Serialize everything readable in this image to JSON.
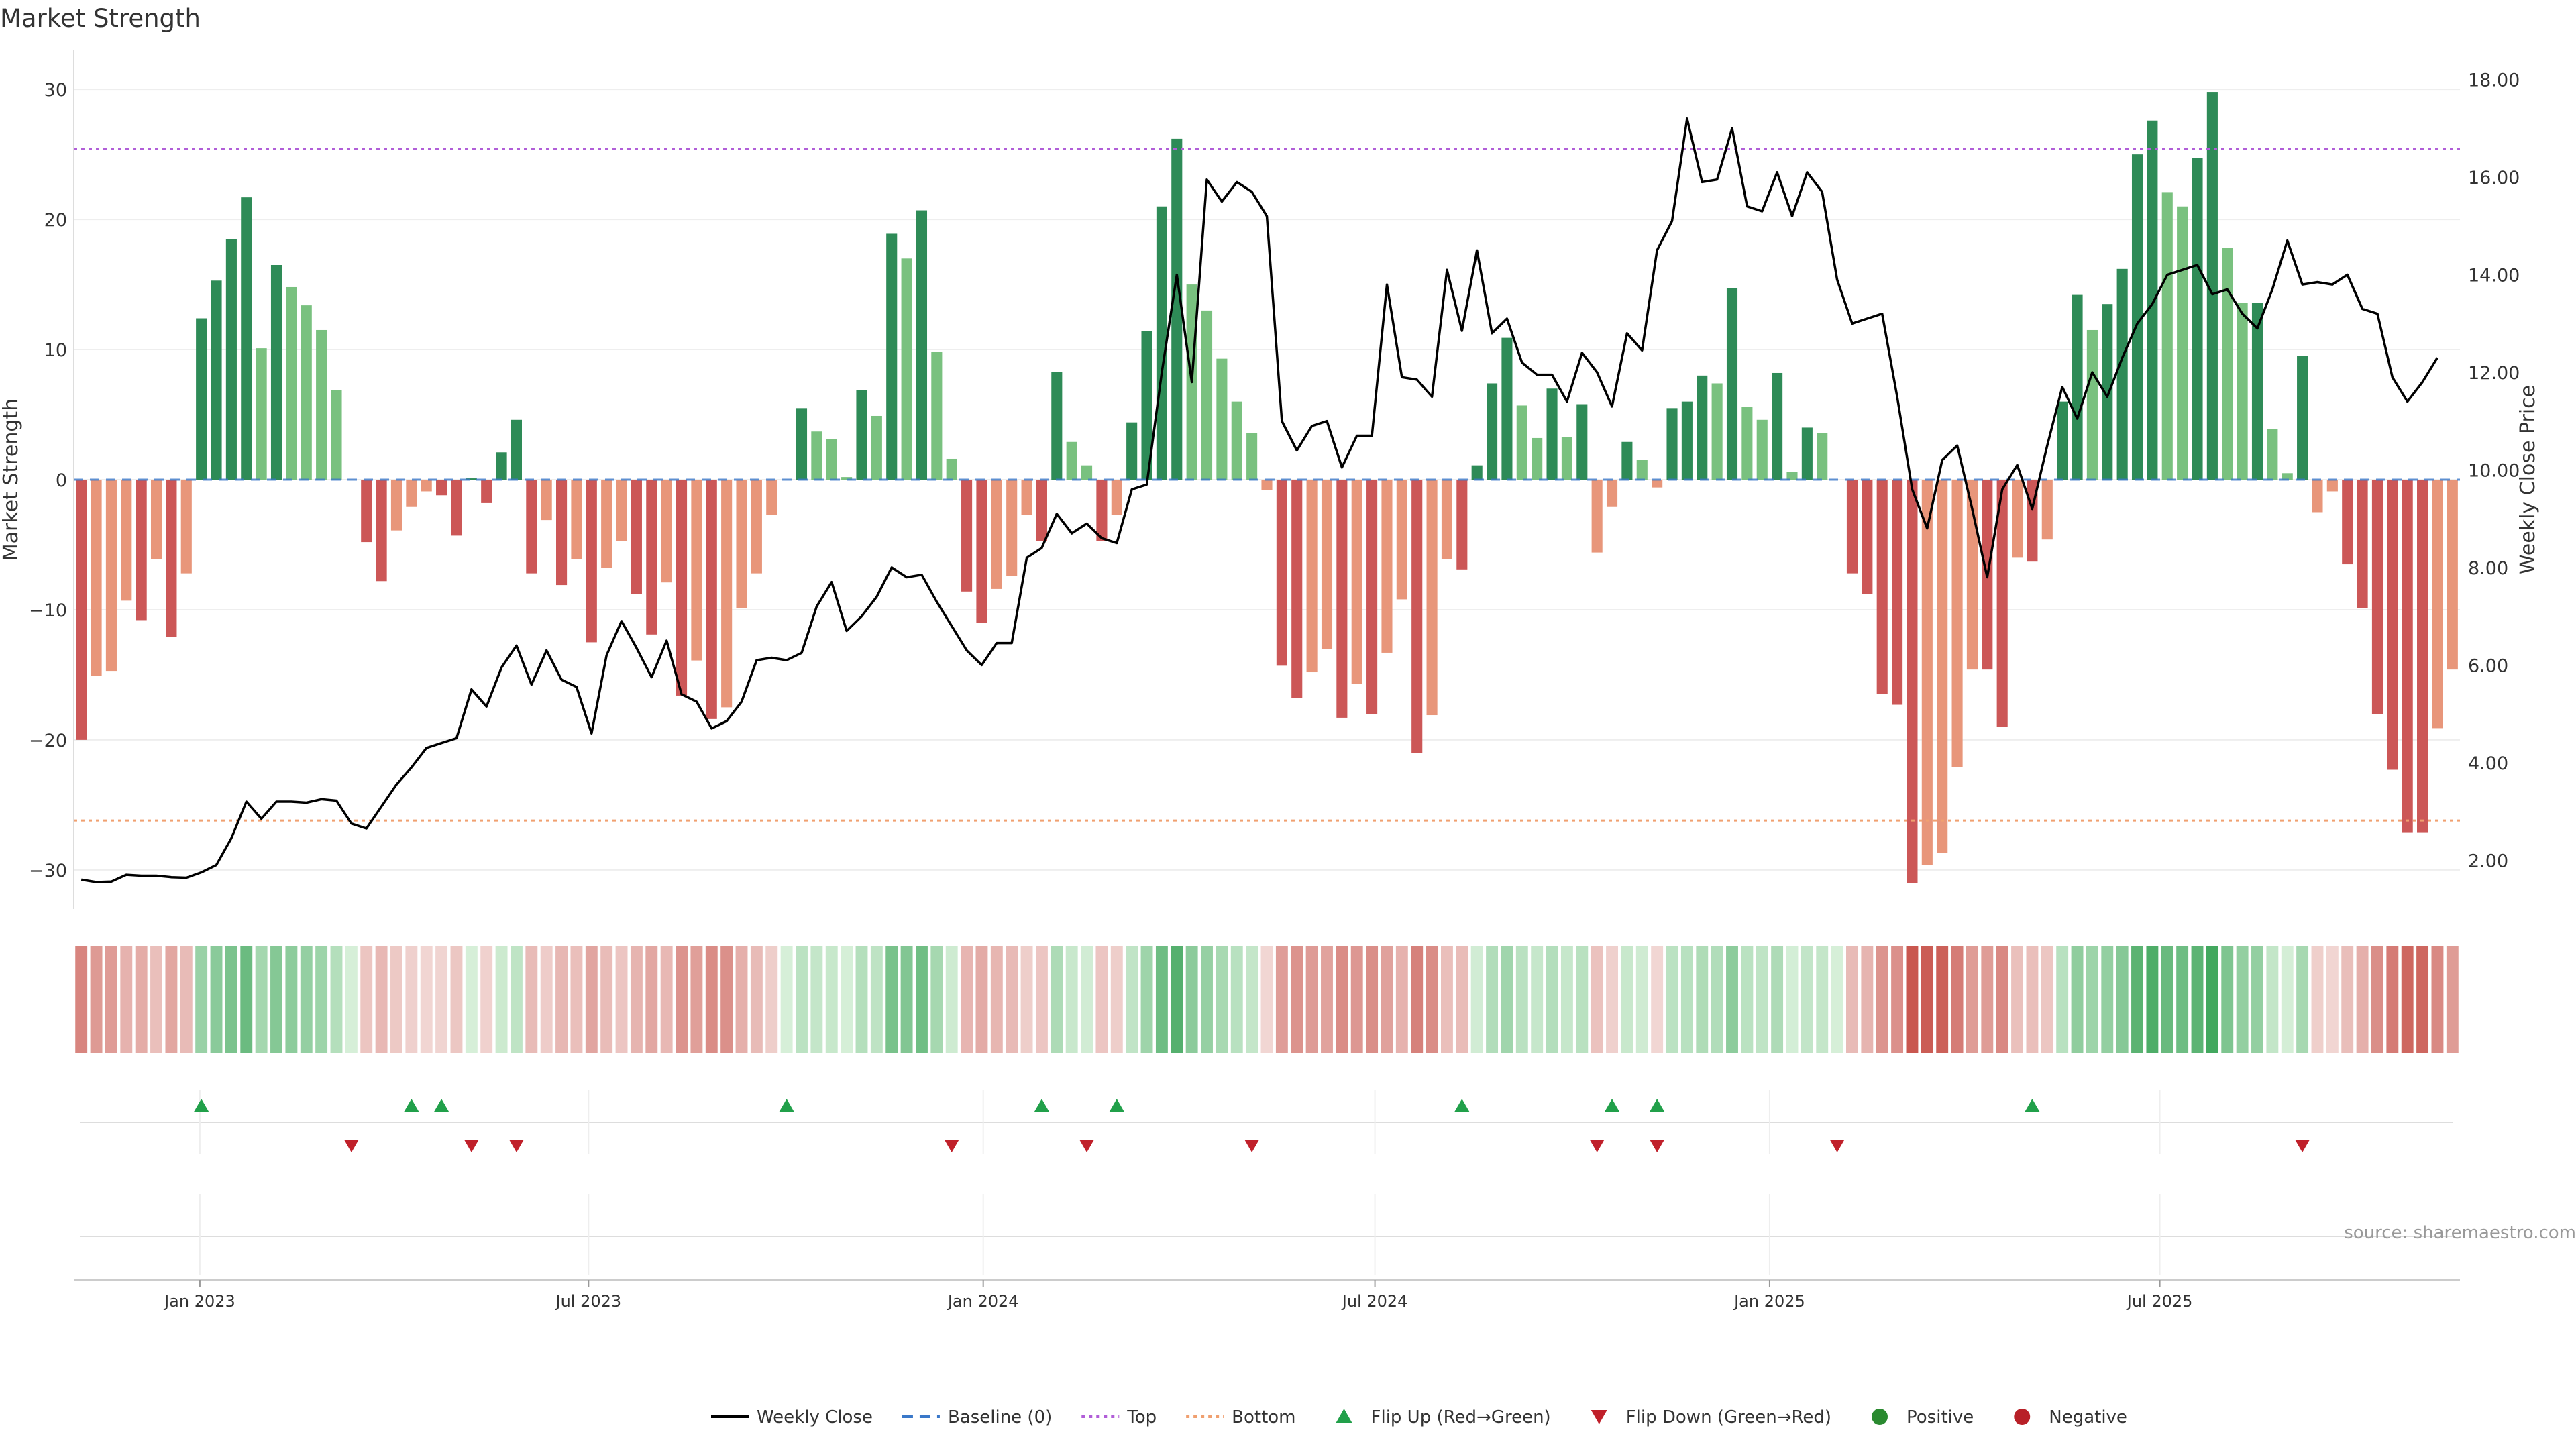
{
  "chart_data": {
    "type": "bar",
    "title": "Market Strength",
    "ylabel": "Market Strength",
    "y2label": "Weekly Close Price",
    "ylim": [
      -33,
      33
    ],
    "y2lim": [
      1.0,
      18.6
    ],
    "yticks": [
      -30,
      -20,
      -10,
      0,
      10,
      20,
      30
    ],
    "y2ticks": [
      "2.00",
      "4.00",
      "6.00",
      "8.00",
      "10.00",
      "12.00",
      "14.00",
      "16.00",
      "18.00"
    ],
    "y2tick_values": [
      2,
      4,
      6,
      8,
      10,
      12,
      14,
      16,
      18
    ],
    "top_level": 25.4,
    "bottom_level": -26.2,
    "xticks": [
      {
        "label": "Jan 2023",
        "week": 8.4
      },
      {
        "label": "Jul 2023",
        "week": 34.3
      },
      {
        "label": "Jan 2024",
        "week": 60.6
      },
      {
        "label": "Jul 2024",
        "week": 86.7
      },
      {
        "label": "Jan 2025",
        "week": 113
      },
      {
        "label": "Jul 2025",
        "week": 139
      }
    ],
    "strength": [
      -20,
      -15.1,
      -14.7,
      -9.3,
      -10.8,
      -6.1,
      -12.1,
      -7.2,
      12.4,
      15.3,
      18.5,
      21.7,
      10.1,
      16.5,
      14.8,
      13.4,
      11.5,
      6.9,
      0,
      -4.8,
      -7.8,
      -3.9,
      -2.1,
      -0.9,
      -1.2,
      -4.3,
      0.1,
      -1.8,
      2.1,
      4.6,
      -7.2,
      -3.1,
      -8.1,
      -6.1,
      -12.5,
      -6.8,
      -4.7,
      -8.8,
      -11.9,
      -7.9,
      -16.6,
      -13.9,
      -18.4,
      -17.5,
      -9.9,
      -7.2,
      -2.7,
      0,
      5.5,
      3.7,
      3.1,
      0.2,
      6.9,
      4.9,
      18.9,
      17,
      20.7,
      9.8,
      1.6,
      -8.6,
      -11,
      -8.4,
      -7.4,
      -2.7,
      -4.7,
      8.3,
      2.9,
      1.1,
      -4.7,
      -2.7,
      4.4,
      11.4,
      21,
      26.2,
      15,
      13,
      9.3,
      6,
      3.6,
      -0.8,
      -14.3,
      -16.8,
      -14.8,
      -13,
      -18.3,
      -15.7,
      -18,
      -13.3,
      -9.2,
      -21,
      -18.1,
      -6.1,
      -6.9,
      1.1,
      7.4,
      10.9,
      5.7,
      3.2,
      7,
      3.3,
      5.8,
      -5.6,
      -2.1,
      2.9,
      1.5,
      -0.6,
      5.5,
      6,
      8,
      7.4,
      14.7,
      5.6,
      4.6,
      8.2,
      0.6,
      4,
      3.6,
      0,
      -7.2,
      -8.8,
      -16.5,
      -17.3,
      -31,
      -29.6,
      -28.7,
      -22.1,
      -14.6,
      -14.6,
      -19,
      -6,
      -6.3,
      -4.6,
      6,
      14.2,
      11.5,
      13.5,
      16.2,
      25,
      27.6,
      22.1,
      21,
      24.7,
      29.8,
      17.8,
      13.6,
      13.6,
      3.9,
      0.5,
      9.5,
      -2.5,
      -0.9,
      -6.5,
      -9.9,
      -18,
      -22.3,
      -27.1,
      -27.1,
      -19.1,
      -14.6
    ],
    "close": [
      1.6,
      1.55,
      1.56,
      1.7,
      1.68,
      1.68,
      1.65,
      1.64,
      1.75,
      1.9,
      2.45,
      3.2,
      2.85,
      3.2,
      3.2,
      3.18,
      3.25,
      3.22,
      2.75,
      2.65,
      3.1,
      3.55,
      3.9,
      4.3,
      4.4,
      4.5,
      5.5,
      5.15,
      5.95,
      6.4,
      5.6,
      6.3,
      5.7,
      5.55,
      4.6,
      6.2,
      6.9,
      6.35,
      5.75,
      6.5,
      5.4,
      5.25,
      4.7,
      4.85,
      5.25,
      6.1,
      6.15,
      6.1,
      6.25,
      7.2,
      7.7,
      6.7,
      7.0,
      7.4,
      8.0,
      7.8,
      7.85,
      7.3,
      6.8,
      6.3,
      6.0,
      6.45,
      6.45,
      8.2,
      8.4,
      9.1,
      8.7,
      8.9,
      8.6,
      8.5,
      9.6,
      9.7,
      12.0,
      14.0,
      11.8,
      15.95,
      15.5,
      15.9,
      15.7,
      15.2,
      11.0,
      10.4,
      10.9,
      11.0,
      10.05,
      10.7,
      10.7,
      13.8,
      11.9,
      11.85,
      11.5,
      14.1,
      12.85,
      14.5,
      12.8,
      13.1,
      12.2,
      11.95,
      11.95,
      11.4,
      12.4,
      12.0,
      11.3,
      12.8,
      12.45,
      14.5,
      15.1,
      17.2,
      15.9,
      15.95,
      17.0,
      15.4,
      15.3,
      16.1,
      15.2,
      16.1,
      15.7,
      13.9,
      13.0,
      13.1,
      13.2,
      11.5,
      9.6,
      8.8,
      10.2,
      10.5,
      9.2,
      7.8,
      9.6,
      10.1,
      9.2,
      10.5,
      11.7,
      11.05,
      12.0,
      11.5,
      12.3,
      13.0,
      13.4,
      14.0,
      14.1,
      14.2,
      13.6,
      13.7,
      13.2,
      12.9,
      13.7,
      14.7,
      13.8,
      13.85,
      13.8,
      14.0,
      13.3,
      13.2,
      11.9,
      11.4,
      11.8,
      12.3
    ],
    "flip_up": [
      8,
      22,
      24,
      47,
      64,
      69,
      92,
      102,
      105,
      130
    ],
    "flip_down": [
      18,
      26,
      29,
      58,
      67,
      78,
      101,
      105,
      117,
      148
    ],
    "legend": [
      {
        "label": "Weekly Close",
        "kind": "line",
        "color": "#000000"
      },
      {
        "label": "Baseline (0)",
        "kind": "dash",
        "color": "#3a78c9"
      },
      {
        "label": "Top",
        "kind": "dot",
        "color": "#b15ed8"
      },
      {
        "label": "Bottom",
        "kind": "dot",
        "color": "#f0a070"
      },
      {
        "label": "Flip Up (Red→Green)",
        "kind": "tri-up",
        "color": "#21a04a"
      },
      {
        "label": "Flip Down (Green→Red)",
        "kind": "tri-down",
        "color": "#c0202a"
      },
      {
        "label": "Positive",
        "kind": "circle",
        "color": "#2a8a30"
      },
      {
        "label": "Negative",
        "kind": "circle",
        "color": "#b82028"
      }
    ],
    "legend_position": "bottom-center",
    "source": "source: sharemaestro.com"
  }
}
